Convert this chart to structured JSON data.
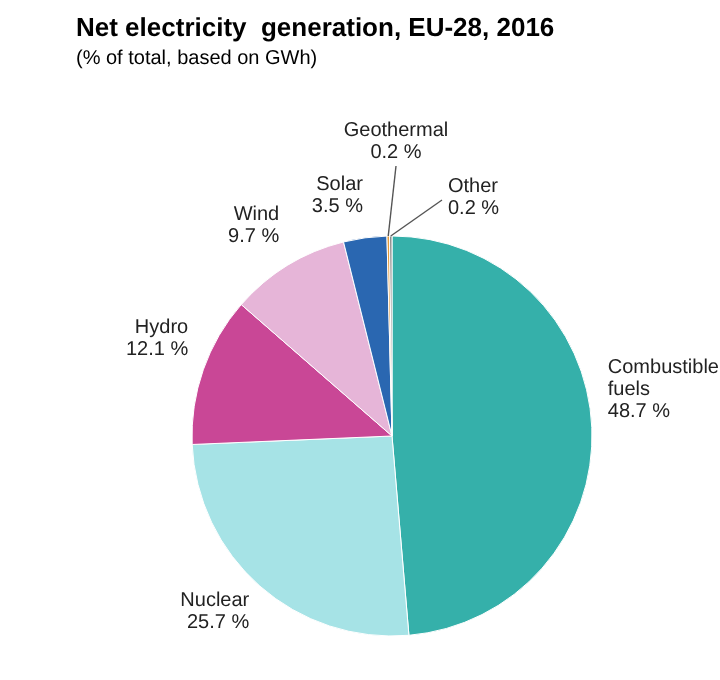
{
  "chart_data": {
    "type": "pie",
    "title": "Net electricity  generation, EU-28, 2016",
    "subtitle": "(% of total, based on GWh)",
    "categories": [
      "Combustible fuels",
      "Nuclear",
      "Hydro",
      "Wind",
      "Solar",
      "Geothermal",
      "Other"
    ],
    "values": [
      48.7,
      25.7,
      12.1,
      9.7,
      3.5,
      0.2,
      0.2
    ],
    "value_labels": [
      "48.7 %",
      "25.7 %",
      "12.1 %",
      "9.7 %",
      "3.5 %",
      "0.2 %",
      "0.2 %"
    ],
    "colors": [
      "#35b0aa",
      "#a6e3e6",
      "#c94796",
      "#e6b5d8",
      "#2a67b1",
      "#e39b3b",
      "#8c8c8c"
    ],
    "legend": false
  }
}
